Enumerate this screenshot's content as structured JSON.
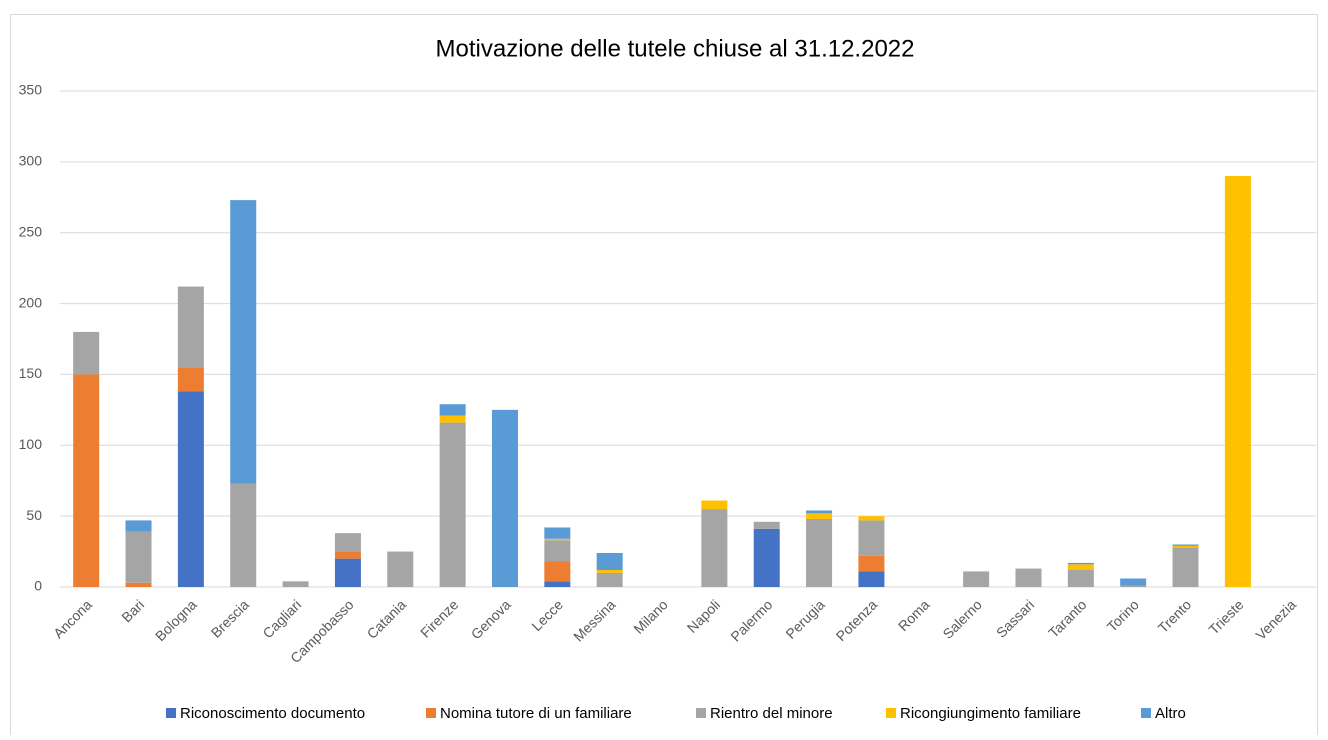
{
  "chart_data": {
    "type": "stacked_bar",
    "title": "Motivazione delle tutele chiuse al 31.12.2022",
    "categories": [
      "Ancona",
      "Bari",
      "Bologna",
      "Brescia",
      "Cagliari",
      "Campobasso",
      "Catania",
      "Firenze",
      "Genova",
      "Lecce",
      "Messina",
      "Milano",
      "Napoli",
      "Palermo",
      "Perugia",
      "Potenza",
      "Roma",
      "Salerno",
      "Sassari",
      "Taranto",
      "Torino",
      "Trento",
      "Trieste",
      "Venezia"
    ],
    "series": [
      {
        "name": "Riconoscimento documento",
        "color": "#4472c4",
        "values": [
          0,
          0,
          138,
          0,
          0,
          20,
          0,
          0,
          0,
          4,
          0,
          0,
          0,
          41,
          0,
          11,
          0,
          0,
          0,
          0,
          0,
          0,
          0,
          0
        ]
      },
      {
        "name": "Nomina tutore di un familiare",
        "color": "#ed7d31",
        "values": [
          150,
          3,
          17,
          0,
          0,
          5,
          0,
          0,
          0,
          14,
          0,
          0,
          0,
          0,
          0,
          11,
          0,
          0,
          0,
          0,
          0,
          0,
          0,
          0
        ]
      },
      {
        "name": "Rientro del minore",
        "color": "#a5a5a5",
        "values": [
          30,
          36,
          57,
          73,
          4,
          13,
          25,
          116,
          0,
          15,
          10,
          0,
          55,
          5,
          48,
          25,
          0,
          11,
          13,
          12,
          1,
          28,
          0,
          0
        ]
      },
      {
        "name": "Ricongiungimento familiare",
        "color": "#ffc000",
        "values": [
          0,
          0,
          0,
          0,
          0,
          0,
          0,
          5,
          0,
          1,
          2,
          0,
          6,
          0,
          4,
          3,
          0,
          0,
          0,
          4,
          0,
          1,
          290,
          0
        ]
      },
      {
        "name": "Altro",
        "color": "#5b9bd5",
        "values": [
          0,
          8,
          0,
          200,
          0,
          0,
          0,
          8,
          125,
          8,
          12,
          0,
          0,
          0,
          2,
          0,
          0,
          0,
          0,
          1,
          5,
          1,
          0,
          0
        ]
      }
    ],
    "ylim": [
      0,
      350
    ],
    "yticks": [
      0,
      50,
      100,
      150,
      200,
      250,
      300,
      350
    ],
    "grid": true
  }
}
